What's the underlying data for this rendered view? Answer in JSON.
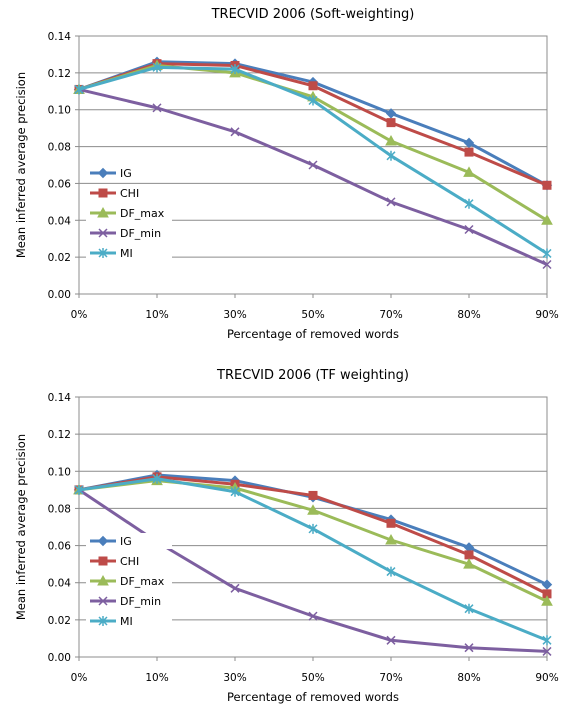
{
  "chart_data": [
    {
      "type": "line",
      "title": "TRECVID 2006 (Soft-weighting)",
      "xlabel": "Percentage of removed words",
      "ylabel": "Mean inferred average precision",
      "categories": [
        "0%",
        "10%",
        "30%",
        "50%",
        "70%",
        "80%",
        "90%"
      ],
      "ylim": [
        0,
        0.14
      ],
      "yticks": [
        "0.00",
        "0.02",
        "0.04",
        "0.06",
        "0.08",
        "0.10",
        "0.12",
        "0.14"
      ],
      "grid": true,
      "legend_position": "left",
      "series": [
        {
          "name": "IG",
          "color": "#4a7ebb",
          "marker": "diamond",
          "values": [
            0.111,
            0.126,
            0.125,
            0.115,
            0.098,
            0.082,
            0.059
          ]
        },
        {
          "name": "CHI",
          "color": "#be4b48",
          "marker": "square",
          "values": [
            0.111,
            0.125,
            0.124,
            0.113,
            0.093,
            0.077,
            0.059
          ]
        },
        {
          "name": "DF_max",
          "color": "#9bbb59",
          "marker": "triangle",
          "values": [
            0.111,
            0.124,
            0.12,
            0.107,
            0.083,
            0.066,
            0.04
          ]
        },
        {
          "name": "DF_min",
          "color": "#7d5fa0",
          "marker": "x",
          "values": [
            0.111,
            0.101,
            0.088,
            0.07,
            0.05,
            0.035,
            0.016
          ]
        },
        {
          "name": "MI",
          "color": "#4bacc6",
          "marker": "asterisk",
          "values": [
            0.111,
            0.123,
            0.122,
            0.105,
            0.075,
            0.049,
            0.022
          ]
        }
      ]
    },
    {
      "type": "line",
      "title": "TRECVID 2006 (TF weighting)",
      "xlabel": "Percentage of removed words",
      "ylabel": "Mean inferred average precision",
      "categories": [
        "0%",
        "10%",
        "30%",
        "50%",
        "70%",
        "80%",
        "90%"
      ],
      "ylim": [
        0,
        0.14
      ],
      "yticks": [
        "0.00",
        "0.02",
        "0.04",
        "0.06",
        "0.08",
        "0.10",
        "0.12",
        "0.14"
      ],
      "grid": true,
      "legend_position": "left",
      "series": [
        {
          "name": "IG",
          "color": "#4a7ebb",
          "marker": "diamond",
          "values": [
            0.09,
            0.098,
            0.095,
            0.086,
            0.074,
            0.059,
            0.039
          ]
        },
        {
          "name": "CHI",
          "color": "#be4b48",
          "marker": "square",
          "values": [
            0.09,
            0.097,
            0.093,
            0.087,
            0.072,
            0.055,
            0.034
          ]
        },
        {
          "name": "DF_max",
          "color": "#9bbb59",
          "marker": "triangle",
          "values": [
            0.09,
            0.095,
            0.091,
            0.079,
            0.063,
            0.05,
            0.03
          ]
        },
        {
          "name": "DF_min",
          "color": "#7d5fa0",
          "marker": "x",
          "values": [
            0.09,
            0.062,
            0.037,
            0.022,
            0.009,
            0.005,
            0.003
          ]
        },
        {
          "name": "MI",
          "color": "#4bacc6",
          "marker": "asterisk",
          "values": [
            0.09,
            0.096,
            0.089,
            0.069,
            0.046,
            0.026,
            0.009
          ]
        }
      ]
    }
  ]
}
